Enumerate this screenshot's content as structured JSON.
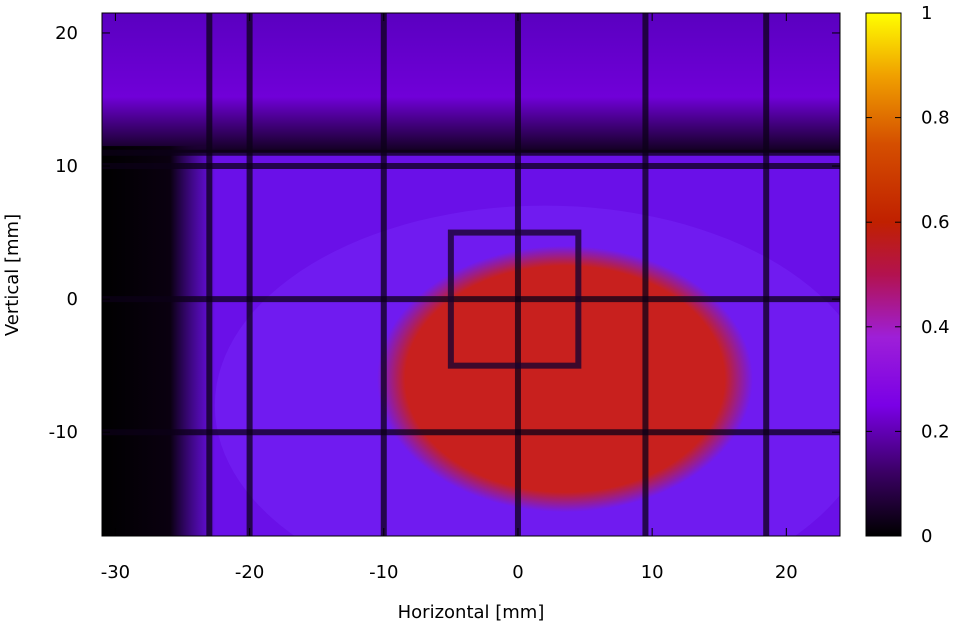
{
  "chart_data": {
    "type": "heatmap",
    "title": "",
    "xlabel": "Horizontal [mm]",
    "ylabel": "Vertical [mm]",
    "xlim": [
      -31,
      24
    ],
    "ylim": [
      -17.8,
      21.5
    ],
    "x_ticks": [
      -30,
      -20,
      -10,
      0,
      10,
      20
    ],
    "y_ticks": [
      20,
      10,
      0,
      -10
    ],
    "colorbar": {
      "range": [
        0,
        1
      ],
      "ticks": [
        0,
        0.2,
        0.4,
        0.6,
        0.8,
        1
      ],
      "tick_labels": [
        "0",
        "0.2",
        "0.4",
        "0.6",
        "0.8",
        "1"
      ],
      "colormap": [
        "#000000",
        "#3a0063",
        "#7a00e6",
        "#9e1fd8",
        "#b3124f",
        "#c02000",
        "#d54f00",
        "#f0a000",
        "#ffff00"
      ]
    },
    "regions": {
      "background_level": 0.2,
      "dark_left_edge_x_max": -27,
      "top_band_y": [
        11,
        21.5
      ],
      "top_band_level": 0.2,
      "hot_spot_center": [
        3.5,
        -6
      ],
      "hot_spot_radius": [
        14,
        10
      ],
      "hot_spot_level": 0.47,
      "frame_x": [
        -5,
        4.5
      ],
      "frame_y": [
        -5,
        5
      ]
    },
    "grid_lines": {
      "vertical_x": [
        -23,
        -20,
        -10,
        0,
        9.5,
        18.5
      ],
      "horizontal_y": [
        11,
        10,
        0,
        -10
      ]
    }
  }
}
